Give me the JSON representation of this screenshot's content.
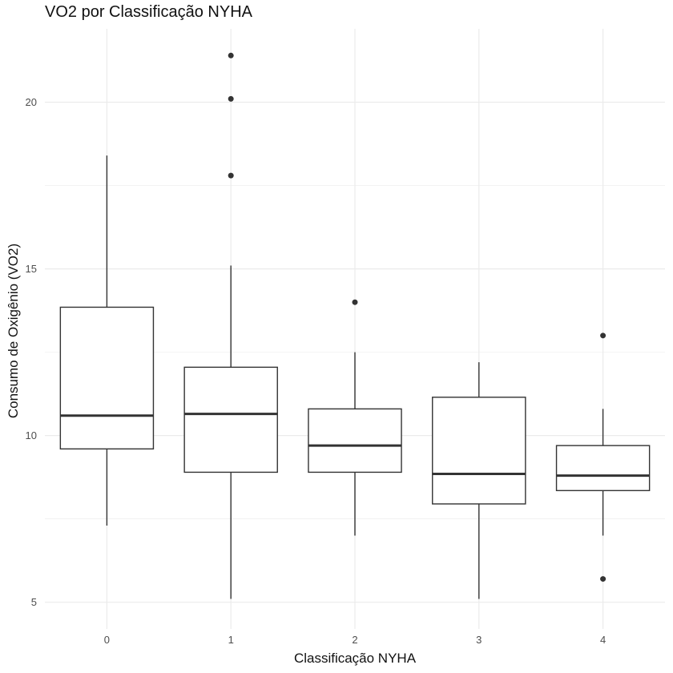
{
  "chart_data": {
    "type": "boxplot",
    "title": "VO2 por Classificação NYHA",
    "xlabel": "Classificação NYHA",
    "ylabel": "Consumo de Oxigênio (VO2)",
    "categories": [
      "0",
      "1",
      "2",
      "3",
      "4"
    ],
    "yticks": [
      "5",
      "10",
      "15",
      "20"
    ],
    "ylim": [
      4.2,
      22.2
    ],
    "grid": true,
    "box_color": "#333333",
    "grid_color": "#ebebeb",
    "boxes": [
      {
        "category": "0",
        "whisker_low": 7.3,
        "q1": 9.6,
        "median": 10.6,
        "q3": 13.85,
        "whisker_high": 18.4,
        "outliers": []
      },
      {
        "category": "1",
        "whisker_low": 5.1,
        "q1": 8.9,
        "median": 10.65,
        "q3": 12.05,
        "whisker_high": 15.1,
        "outliers": [
          17.8,
          20.1,
          21.4
        ]
      },
      {
        "category": "2",
        "whisker_low": 7.0,
        "q1": 8.9,
        "median": 9.7,
        "q3": 10.8,
        "whisker_high": 12.5,
        "outliers": [
          14.0
        ]
      },
      {
        "category": "3",
        "whisker_low": 5.1,
        "q1": 7.95,
        "median": 8.85,
        "q3": 11.15,
        "whisker_high": 12.2,
        "outliers": []
      },
      {
        "category": "4",
        "whisker_low": 7.0,
        "q1": 8.35,
        "median": 8.8,
        "q3": 9.7,
        "whisker_high": 10.8,
        "outliers": [
          5.7,
          13.0
        ]
      }
    ]
  }
}
